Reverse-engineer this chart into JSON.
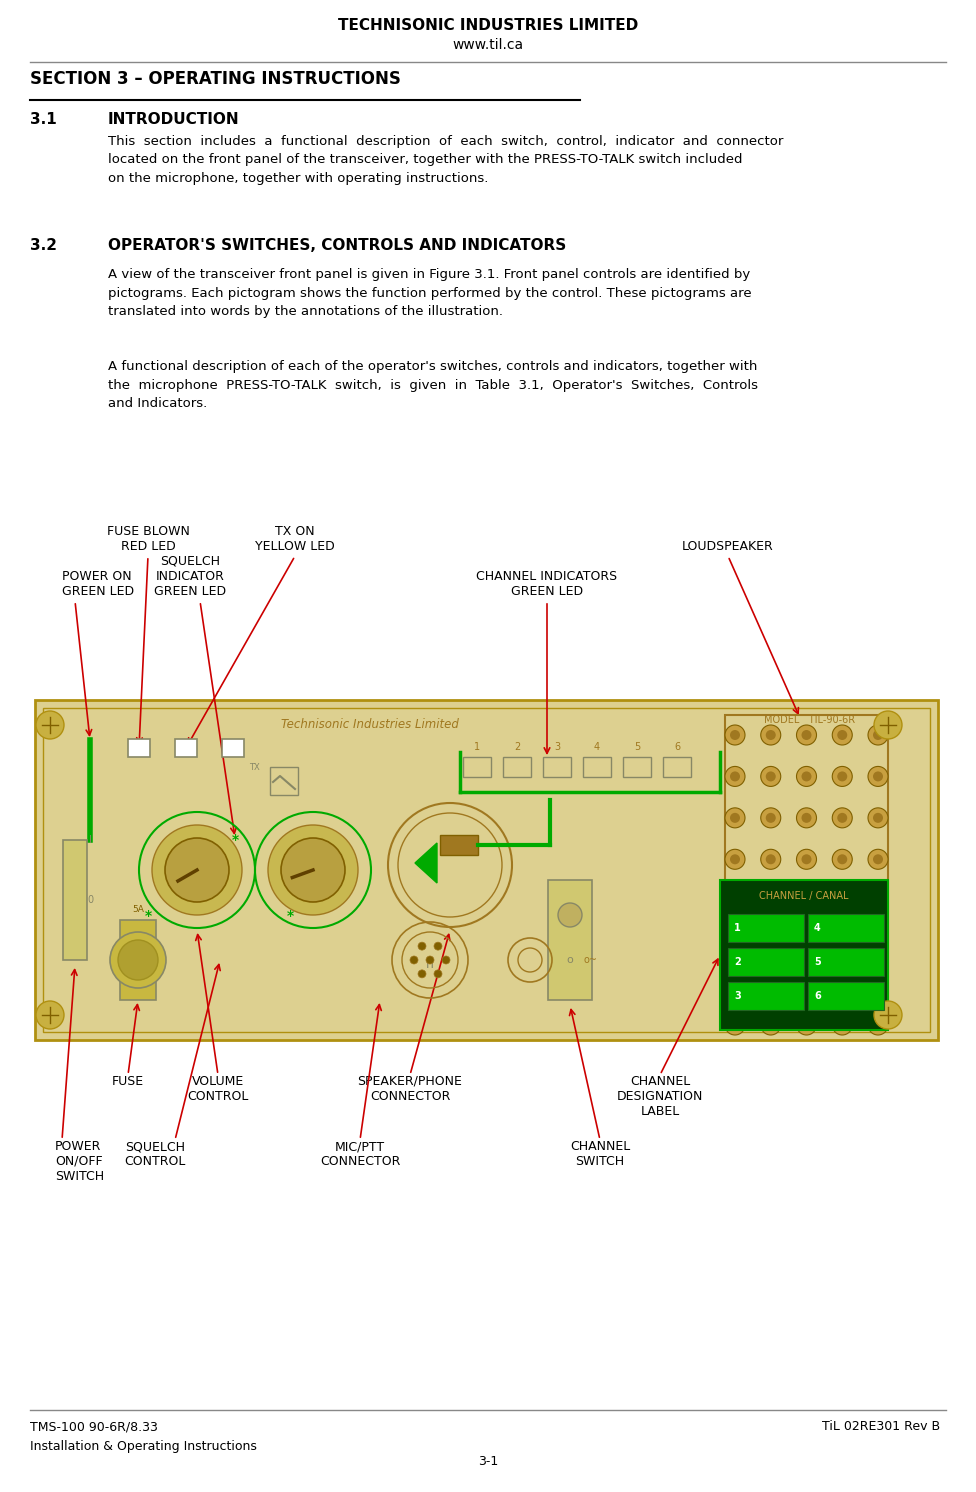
{
  "title_line1": "TECHNISONIC INDUSTRIES LIMITED",
  "title_line2": "www.til.ca",
  "section_header": "SECTION 3 – OPERATING INSTRUCTIONS",
  "section31_num": "3.1",
  "section31_title": "INTRODUCTION",
  "section32_num": "3.2",
  "section32_title": "OPERATOR'S SWITCHES, CONTROLS AND INDICATORS",
  "footer_left_line1": "TMS-100 90-6R/8.33",
  "footer_left_line2": "Installation & Operating Instructions",
  "footer_right": "TiL 02RE301 Rev B",
  "footer_center": "3-1",
  "bg_color": "#ffffff",
  "text_color": "#000000",
  "panel_face": "#e8dfa0",
  "panel_edge": "#b8980a",
  "green_line": "#00aa00",
  "brown_comp": "#a07820",
  "arrow_color": "#cc0000"
}
